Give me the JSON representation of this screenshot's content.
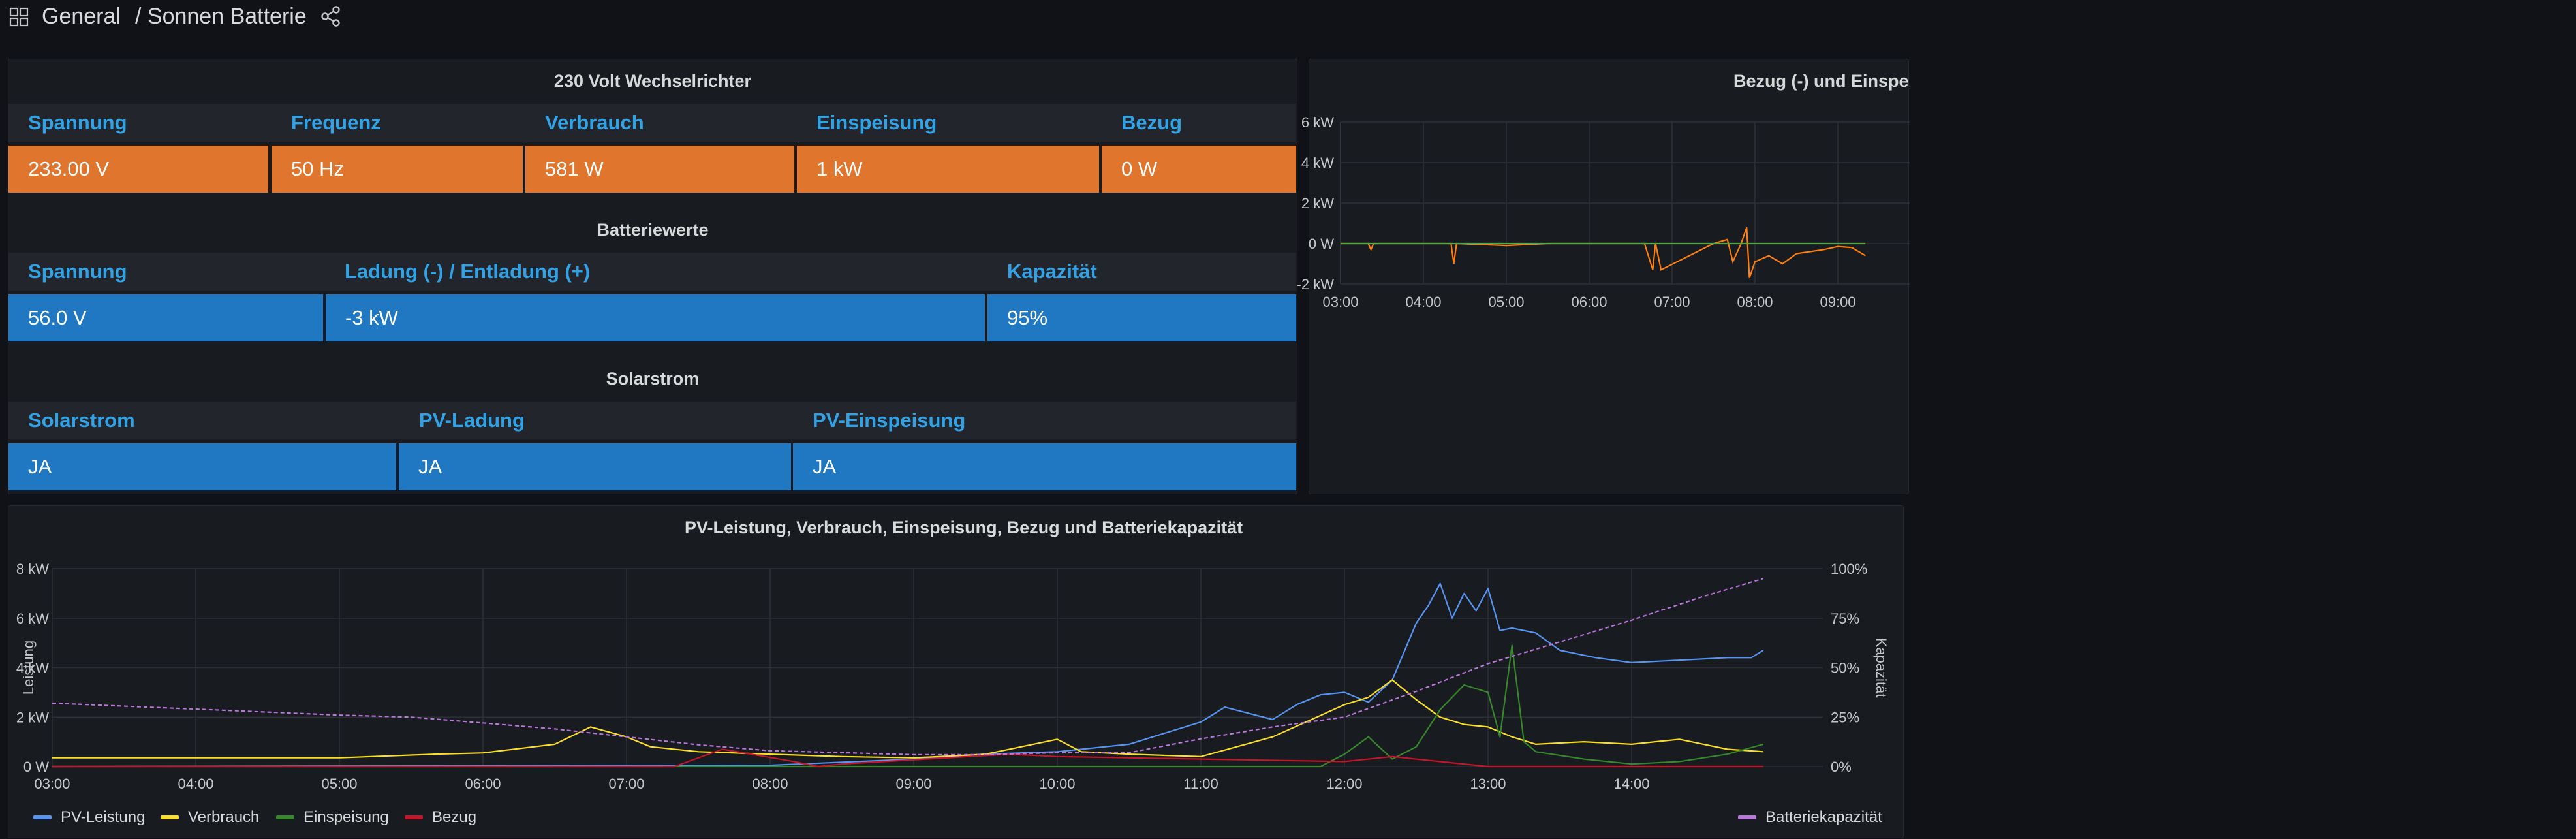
{
  "header": {
    "folder": "General",
    "title": "/ Sonnen Batterie",
    "icons": [
      "apps-grid-icon",
      "share-icon"
    ]
  },
  "inverter": {
    "title": "230 Volt Wechselrichter",
    "columns": [
      "Spannung",
      "Frequenz",
      "Verbrauch",
      "Einspeisung",
      "Bezug"
    ],
    "values": [
      "233.00 V",
      "50 Hz",
      "581 W",
      "1 kW",
      "0 W"
    ],
    "color": "#e0752d"
  },
  "battery": {
    "title": "Batteriewerte",
    "columns": [
      "Spannung",
      "Ladung (-) / Entladung (+)",
      "Kapazität"
    ],
    "values": [
      "56.0 V",
      "-3 kW",
      "95%"
    ],
    "color": "#1f78c1"
  },
  "solar": {
    "title": "Solarstrom",
    "columns": [
      "Solarstrom",
      "PV-Ladung",
      "PV-Einspeisung"
    ],
    "values": [
      "JA",
      "JA",
      "JA"
    ],
    "color": "#1f78c1"
  },
  "grid_panel": {
    "title": "Bezug (-) und Einspe"
  },
  "main_panel": {
    "title": "PV-Leistung, Verbrauch, Einspeisung, Bezug und Batteriekapazität",
    "ylabel_left": "Leistung",
    "ylabel_right": "Kapazität"
  },
  "chart_data": [
    {
      "type": "line",
      "title": "Bezug (-) und Einspe",
      "x_ticks": [
        "03:00",
        "04:00",
        "05:00",
        "06:00",
        "07:00",
        "08:00",
        "09:00"
      ],
      "y_ticks": [
        "6 kW",
        "4 kW",
        "2 kW",
        "0 W",
        "-2 kW"
      ],
      "ylim_kw": [
        -2,
        6
      ],
      "grid": true,
      "series": [
        {
          "color": "#ff7f0e",
          "x": [
            "03:00",
            "03:20",
            "03:22",
            "03:24",
            "03:40",
            "04:20",
            "04:22",
            "04:24",
            "05:00",
            "05:30",
            "06:40",
            "06:46",
            "06:48",
            "06:52",
            "07:30",
            "07:40",
            "07:44",
            "07:50",
            "07:54",
            "07:56",
            "08:00",
            "08:10",
            "08:20",
            "08:30",
            "08:40",
            "08:50",
            "09:00",
            "09:10",
            "09:20"
          ],
          "values_kw": [
            0,
            0,
            -0.3,
            0,
            0,
            0,
            -1.0,
            0,
            -0.1,
            0,
            0,
            -1.3,
            0,
            -1.3,
            0,
            0.2,
            -0.9,
            0,
            0.8,
            -1.7,
            -0.9,
            -0.6,
            -1.0,
            -0.5,
            -0.4,
            -0.3,
            -0.15,
            -0.2,
            -0.6
          ]
        },
        {
          "color": "#56a64b",
          "x": [
            "03:00",
            "09:20"
          ],
          "values_kw": [
            0,
            0
          ]
        }
      ]
    },
    {
      "type": "line",
      "title": "PV-Leistung, Verbrauch, Einspeisung, Bezug und Batteriekapazität",
      "x_ticks": [
        "03:00",
        "04:00",
        "05:00",
        "06:00",
        "07:00",
        "08:00",
        "09:00",
        "10:00",
        "11:00",
        "12:00",
        "13:00",
        "14:00"
      ],
      "y_ticks_left": [
        "8 kW",
        "6 kW",
        "4 kW",
        "2 kW",
        "0 W"
      ],
      "y_ticks_right": [
        "100%",
        "75%",
        "50%",
        "25%",
        "0%"
      ],
      "ylim_kw": [
        0,
        8
      ],
      "ylim_pct": [
        0,
        100
      ],
      "xlabel": "",
      "ylabel": "Leistung",
      "ylabel_right": "Kapazität",
      "grid": true,
      "legend_position": "bottom",
      "series": [
        {
          "name": "PV-Leistung",
          "color": "#5794f2",
          "axis": "left",
          "x": [
            "03:00",
            "08:00",
            "09:00",
            "09:30",
            "10:00",
            "10:30",
            "11:00",
            "11:10",
            "11:30",
            "11:40",
            "11:50",
            "12:00",
            "12:10",
            "12:20",
            "12:30",
            "12:35",
            "12:40",
            "12:45",
            "12:50",
            "12:55",
            "13:00",
            "13:05",
            "13:10",
            "13:20",
            "13:30",
            "13:45",
            "14:00",
            "14:20",
            "14:40",
            "14:50",
            "14:55"
          ],
          "values_kw": [
            0,
            0.05,
            0.3,
            0.5,
            0.6,
            0.9,
            1.8,
            2.4,
            1.9,
            2.5,
            2.9,
            3.0,
            2.6,
            3.5,
            5.8,
            6.5,
            7.4,
            6.0,
            7.0,
            6.3,
            7.2,
            5.5,
            5.6,
            5.4,
            4.7,
            4.4,
            4.2,
            4.3,
            4.4,
            4.4,
            4.7
          ]
        },
        {
          "name": "Verbrauch",
          "color": "#fade2a",
          "axis": "left",
          "x": [
            "03:00",
            "04:00",
            "05:00",
            "05:40",
            "06:00",
            "06:30",
            "06:45",
            "07:00",
            "07:10",
            "07:30",
            "08:00",
            "08:30",
            "09:00",
            "09:30",
            "10:00",
            "10:10",
            "10:30",
            "11:00",
            "11:30",
            "12:00",
            "12:10",
            "12:20",
            "12:30",
            "12:40",
            "12:50",
            "13:00",
            "13:10",
            "13:20",
            "13:40",
            "14:00",
            "14:20",
            "14:40",
            "14:55"
          ],
          "values_kw": [
            0.35,
            0.35,
            0.35,
            0.5,
            0.55,
            0.9,
            1.6,
            1.2,
            0.8,
            0.6,
            0.5,
            0.4,
            0.35,
            0.5,
            1.1,
            0.6,
            0.5,
            0.4,
            1.2,
            2.5,
            2.8,
            3.5,
            2.7,
            2.0,
            1.7,
            1.6,
            1.2,
            0.9,
            1.0,
            0.9,
            1.1,
            0.7,
            0.6
          ]
        },
        {
          "name": "Einspeisung",
          "color": "#37872d",
          "axis": "left",
          "x": [
            "03:00",
            "11:50",
            "12:00",
            "12:10",
            "12:20",
            "12:30",
            "12:40",
            "12:50",
            "13:00",
            "13:05",
            "13:10",
            "13:15",
            "13:20",
            "13:40",
            "14:00",
            "14:20",
            "14:40",
            "14:55"
          ],
          "values_kw": [
            0,
            0,
            0.5,
            1.2,
            0.3,
            0.8,
            2.3,
            3.3,
            3.0,
            1.2,
            4.9,
            1.0,
            0.6,
            0.3,
            0.1,
            0.2,
            0.5,
            0.9
          ]
        },
        {
          "name": "Bezug",
          "color": "#c4162a",
          "axis": "left",
          "x": [
            "03:00",
            "03:50",
            "04:30",
            "05:10",
            "05:50",
            "06:30",
            "07:20",
            "07:40",
            "08:10",
            "08:20",
            "08:30",
            "09:40",
            "10:00",
            "12:00",
            "12:20",
            "13:00",
            "14:55"
          ],
          "values_kw": [
            0,
            0,
            0,
            0,
            0,
            0,
            0,
            0.7,
            0.2,
            0,
            0.1,
            0.5,
            0.4,
            0.2,
            0.4,
            0,
            0
          ]
        },
        {
          "name": "Batteriekapazität",
          "color": "#b877d9",
          "axis": "right",
          "x": [
            "03:00",
            "04:00",
            "05:00",
            "05:30",
            "06:00",
            "06:30",
            "07:00",
            "07:30",
            "08:00",
            "09:00",
            "09:30",
            "10:00",
            "10:30",
            "11:00",
            "11:30",
            "12:00",
            "12:30",
            "13:00",
            "13:30",
            "14:00",
            "14:30",
            "14:55"
          ],
          "values_pct": [
            32,
            29,
            26,
            25,
            22,
            19,
            15,
            11,
            8,
            6,
            6,
            7,
            7,
            14,
            20,
            25,
            38,
            52,
            63,
            74,
            86,
            95
          ]
        }
      ]
    }
  ]
}
